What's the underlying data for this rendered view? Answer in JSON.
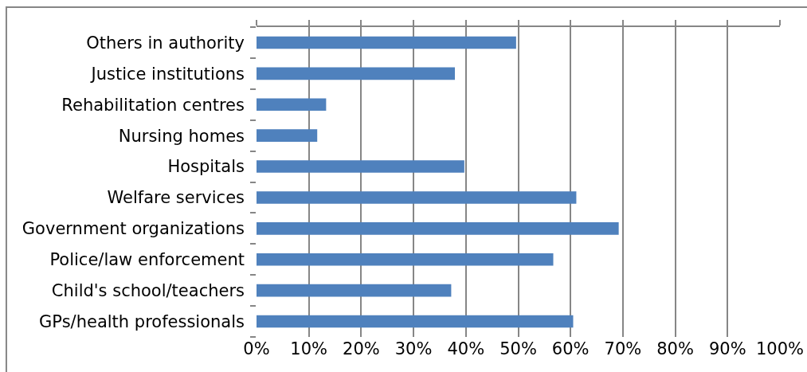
{
  "chart_data": {
    "type": "bar",
    "orientation": "horizontal",
    "categories": [
      "Others in authority",
      "Justice institutions",
      "Rehabilitation centres",
      "Nursing homes",
      "Hospitals",
      "Welfare services",
      "Government organizations",
      "Police/law enforcement",
      "Child's school/teachers",
      "GPs/health professionals"
    ],
    "values": [
      49.6,
      37.9,
      13.3,
      11.6,
      39.7,
      61.1,
      69.2,
      56.7,
      37.2,
      60.5
    ],
    "color": "#4f81bd",
    "xlim": [
      0,
      100
    ],
    "xticks": [
      {
        "value": 0,
        "label": "0%"
      },
      {
        "value": 10,
        "label": "10%"
      },
      {
        "value": 20,
        "label": "20%"
      },
      {
        "value": 30,
        "label": "30%"
      },
      {
        "value": 40,
        "label": "40%"
      },
      {
        "value": 50,
        "label": "50%"
      },
      {
        "value": 60,
        "label": "60%"
      },
      {
        "value": 70,
        "label": "70%"
      },
      {
        "value": 80,
        "label": "80%"
      },
      {
        "value": 90,
        "label": "90%"
      },
      {
        "value": 100,
        "label": "100%"
      }
    ],
    "grid": "x"
  }
}
